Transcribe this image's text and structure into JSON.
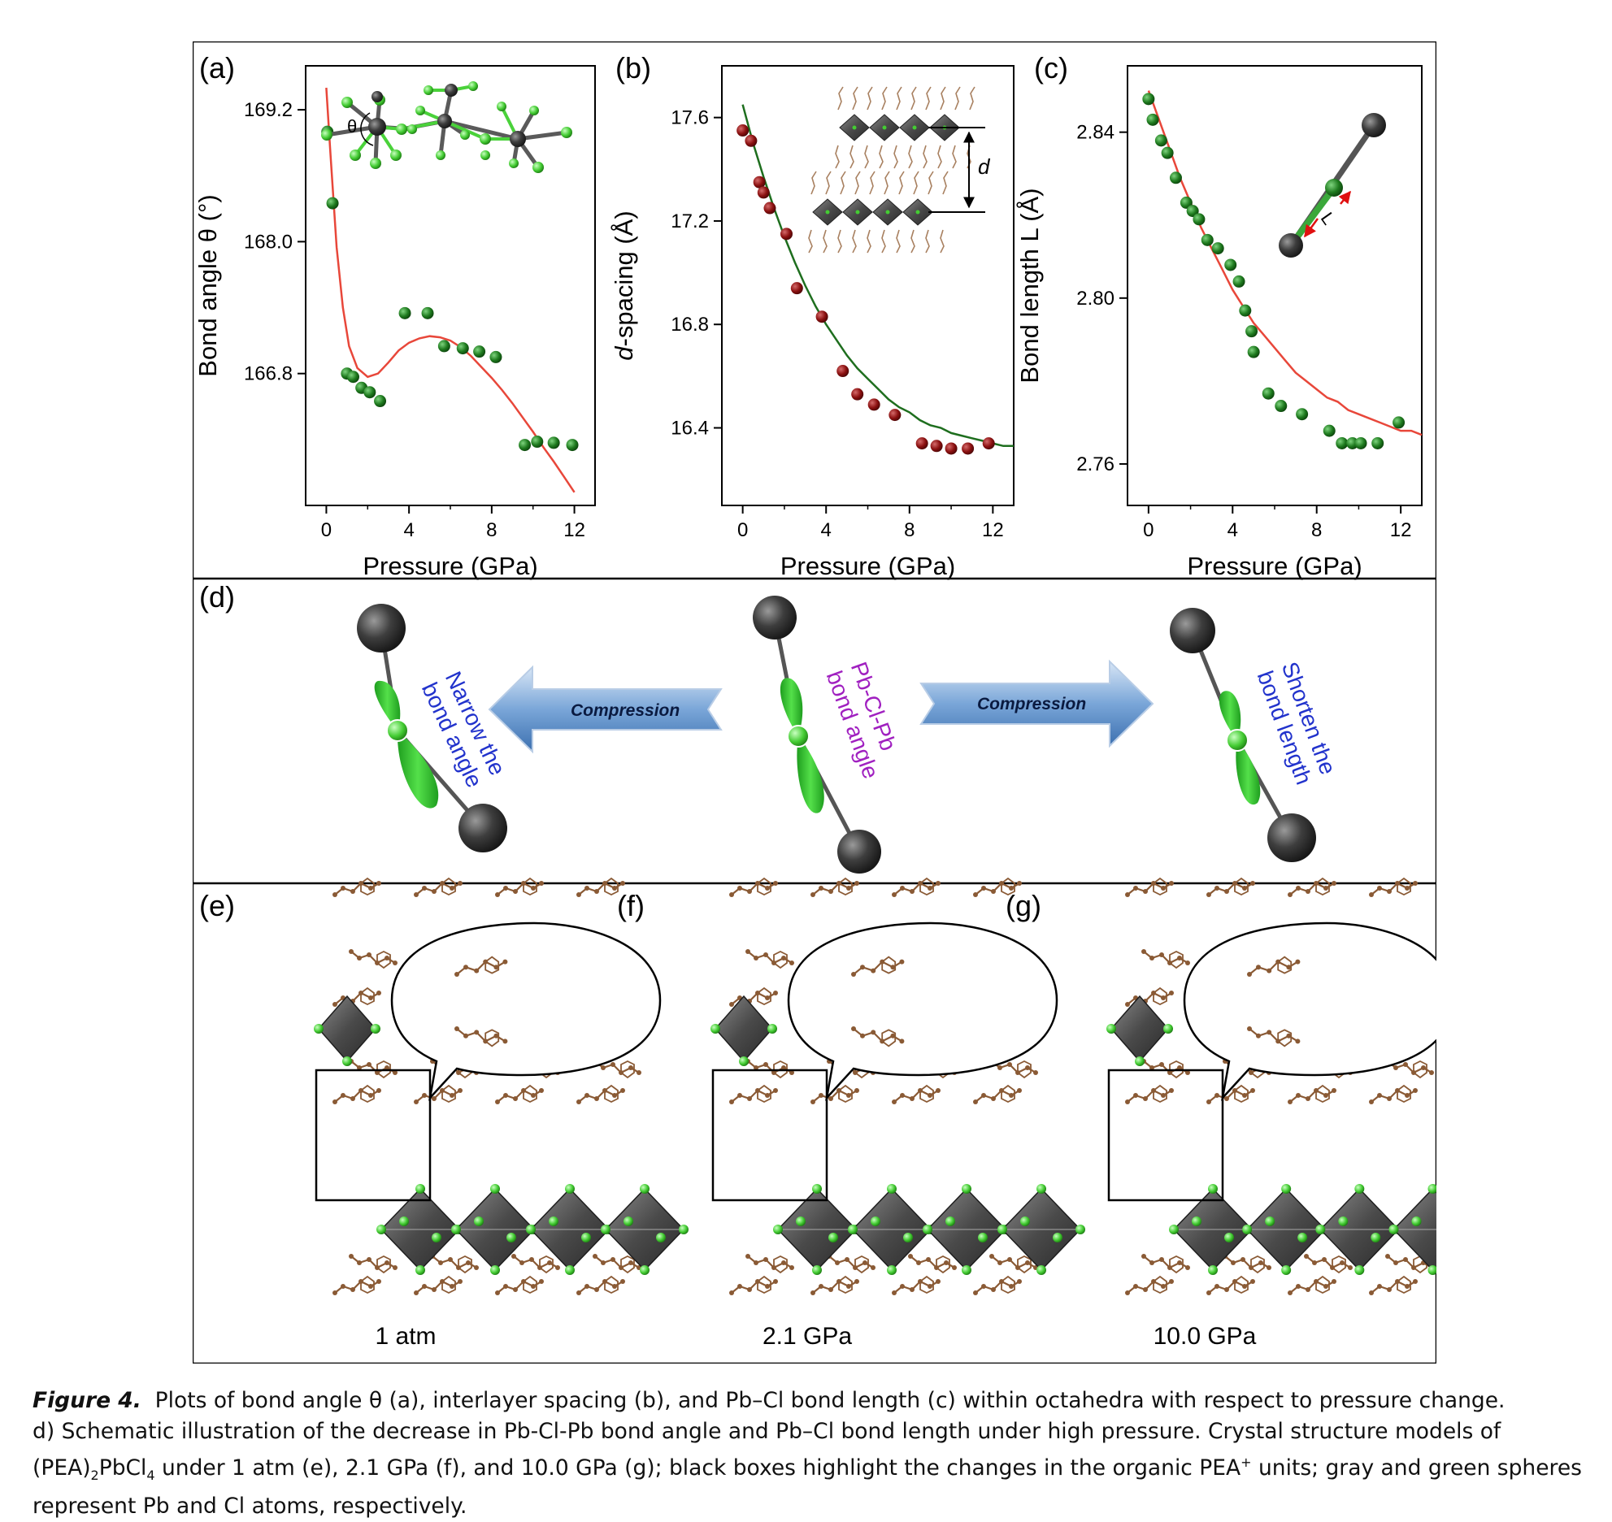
{
  "colors": {
    "green_point": "#1e7a1e",
    "red_point": "#8b1010",
    "red_curve": "#e8473a",
    "green_curve": "#1e6e1e",
    "pb_gray": "#3a3a3a",
    "cl_green": "#4cd43a",
    "organic_brown": "#8a5a35",
    "text_blue": "#2233cc",
    "text_purple": "#a020c0"
  },
  "chart_data": [
    {
      "panel": "(a)",
      "type": "scatter",
      "xlabel": "Pressure (GPa)",
      "ylabel": "Bond angle θ (°)",
      "xticks": [
        0,
        4,
        8,
        12
      ],
      "yticks": [
        166.8,
        168.0,
        169.2
      ],
      "xlim": [
        -1,
        13
      ],
      "ylim": [
        165.6,
        169.6
      ],
      "inset_label": "θ",
      "series": [
        {
          "kind": "points",
          "x": [
            0.05,
            0.3,
            1.0,
            1.3,
            1.7,
            2.1,
            2.6,
            3.8,
            4.9,
            5.7,
            6.6,
            7.4,
            8.2,
            9.6,
            10.2,
            11.0,
            11.9
          ],
          "y": [
            169.0,
            168.35,
            166.8,
            166.77,
            166.67,
            166.63,
            166.55,
            167.35,
            167.35,
            167.05,
            167.03,
            167.0,
            166.95,
            166.15,
            166.18,
            166.17,
            166.15
          ]
        },
        {
          "kind": "curve",
          "x": [
            0,
            0.2,
            0.5,
            0.8,
            1.1,
            1.5,
            2.0,
            2.5,
            3.0,
            3.5,
            4.0,
            4.5,
            5.0,
            5.5,
            6.0,
            6.5,
            7.0,
            7.5,
            8.0,
            8.5,
            9.0,
            9.5,
            10.0,
            10.5,
            11.0,
            11.5,
            12.0
          ],
          "y": [
            169.4,
            168.8,
            167.95,
            167.4,
            167.05,
            166.85,
            166.77,
            166.8,
            166.9,
            167.01,
            167.08,
            167.12,
            167.14,
            167.13,
            167.1,
            167.04,
            166.96,
            166.86,
            166.76,
            166.65,
            166.53,
            166.4,
            166.27,
            166.13,
            166.0,
            165.86,
            165.72
          ]
        }
      ]
    },
    {
      "panel": "(b)",
      "type": "scatter",
      "xlabel": "-spacing (Å)",
      "xlabel_italic_prefix": "d",
      "ylabel": "-spacing (Å)",
      "ylabel_italic_prefix": "d",
      "xtitle": "Pressure (GPa)",
      "xticks": [
        0,
        4,
        8,
        12
      ],
      "yticks": [
        16.4,
        16.8,
        17.2,
        17.6
      ],
      "xlim": [
        -1,
        13
      ],
      "ylim": [
        16.1,
        17.8
      ],
      "inset_label": "d",
      "series": [
        {
          "kind": "points",
          "x": [
            0.0,
            0.4,
            0.8,
            1.0,
            1.3,
            2.1,
            2.6,
            3.8,
            4.8,
            5.5,
            6.3,
            7.3,
            8.6,
            9.3,
            10.0,
            10.8,
            11.8
          ],
          "y": [
            17.55,
            17.51,
            17.35,
            17.31,
            17.25,
            17.15,
            16.94,
            16.83,
            16.62,
            16.53,
            16.49,
            16.45,
            16.34,
            16.33,
            16.32,
            16.32,
            16.34
          ]
        },
        {
          "kind": "curve",
          "x": [
            0,
            0.5,
            1,
            1.5,
            2,
            2.5,
            3,
            3.5,
            4,
            4.5,
            5,
            5.5,
            6,
            6.5,
            7,
            7.5,
            8,
            8.5,
            9,
            9.5,
            10,
            10.5,
            11,
            11.5,
            12,
            12.5,
            13
          ],
          "y": [
            17.65,
            17.5,
            17.37,
            17.25,
            17.14,
            17.04,
            16.95,
            16.87,
            16.8,
            16.74,
            16.68,
            16.63,
            16.59,
            16.55,
            16.51,
            16.48,
            16.46,
            16.43,
            16.41,
            16.4,
            16.38,
            16.37,
            16.36,
            16.35,
            16.34,
            16.33,
            16.33
          ]
        }
      ]
    },
    {
      "panel": "(c)",
      "type": "scatter",
      "xlabel": "Pressure (GPa)",
      "ylabel": "Bond length L (Å)",
      "xticks": [
        0,
        4,
        8,
        12
      ],
      "yticks": [
        2.76,
        2.8,
        2.84
      ],
      "xlim": [
        -1,
        13
      ],
      "ylim": [
        2.75,
        2.856
      ],
      "inset_label": "L",
      "series": [
        {
          "kind": "points",
          "x": [
            0.0,
            0.2,
            0.6,
            0.9,
            1.3,
            1.8,
            2.1,
            2.4,
            2.8,
            3.3,
            3.9,
            4.3,
            4.6,
            4.9,
            5.0,
            5.7,
            6.3,
            7.3,
            8.6,
            9.2,
            9.7,
            10.1,
            10.9,
            11.9
          ],
          "y": [
            2.848,
            2.843,
            2.838,
            2.835,
            2.829,
            2.823,
            2.821,
            2.819,
            2.814,
            2.812,
            2.808,
            2.804,
            2.797,
            2.792,
            2.787,
            2.777,
            2.774,
            2.772,
            2.768,
            2.765,
            2.765,
            2.765,
            2.765,
            2.77
          ]
        },
        {
          "kind": "curve",
          "x": [
            0,
            0.5,
            1,
            1.5,
            2,
            2.5,
            3,
            3.5,
            4,
            4.5,
            5,
            5.5,
            6,
            6.5,
            7,
            7.5,
            8,
            8.5,
            9,
            9.5,
            10,
            10.5,
            11,
            11.5,
            12,
            12.5,
            13
          ],
          "y": [
            2.85,
            2.843,
            2.836,
            2.829,
            2.823,
            2.817,
            2.812,
            2.807,
            2.802,
            2.798,
            2.794,
            2.791,
            2.788,
            2.785,
            2.782,
            2.78,
            2.778,
            2.776,
            2.775,
            2.773,
            2.772,
            2.771,
            2.77,
            2.769,
            2.768,
            2.768,
            2.767
          ]
        }
      ]
    }
  ],
  "panel_d": {
    "label": "(d)",
    "left_text": [
      "Narrow the",
      "bond angle"
    ],
    "center_text": [
      "Pb-Cl-Pb",
      "bond angle"
    ],
    "right_text": [
      "Shorten the",
      "bond length"
    ],
    "arrow_left": "Compression",
    "arrow_right": "Compression"
  },
  "panels_efg": [
    {
      "label": "(e)",
      "caption": "1 atm"
    },
    {
      "label": "(f)",
      "caption": "2.1 GPa"
    },
    {
      "label": "(g)",
      "caption": "10.0 GPa"
    }
  ],
  "figure_caption": {
    "label": "Figure 4.",
    "line1": "Plots of bond angle θ (a), interlayer spacing (b), and Pb–Cl bond length (c) within octahedra with respect to pressure change.",
    "line2": "d) Schematic illustration of the decrease in Pb-Cl-Pb bond angle and Pb–Cl bond length under high pressure. Crystal structure models of",
    "line3_a": "(PEA)",
    "line3_sub1": "2",
    "line3_b": "PbCl",
    "line3_sub2": "4",
    "line3_c": " under 1 atm (e), 2.1 GPa (f), and 10.0 GPa (g); black boxes highlight the changes in the organic PEA",
    "line3_sup": "+",
    "line3_d": " units; gray and green spheres",
    "line4": "represent Pb and Cl atoms, respectively."
  }
}
